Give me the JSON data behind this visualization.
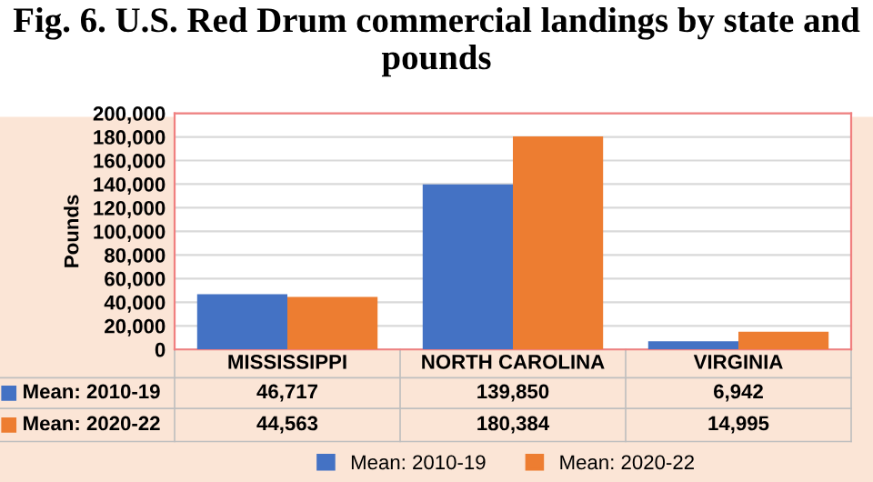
{
  "chart_data": {
    "type": "bar",
    "title": "Fig. 6. U.S. Red Drum commercial landings by state and pounds",
    "ylabel": "Pounds",
    "categories": [
      "MISSISSIPPI",
      "NORTH CAROLINA",
      "VIRGINIA"
    ],
    "series": [
      {
        "name": "Mean: 2010-19",
        "color": "#4472c4",
        "values": [
          46717,
          139850,
          6942
        ],
        "value_labels": [
          "46,717",
          "139,850",
          "6,942"
        ]
      },
      {
        "name": "Mean: 2020-22",
        "color": "#ed7d31",
        "values": [
          44563,
          180384,
          14995
        ],
        "value_labels": [
          "44,563",
          "180,384",
          "14,995"
        ]
      }
    ],
    "ylim": [
      0,
      200000
    ],
    "yticks": [
      {
        "value": 0,
        "label": "0"
      },
      {
        "value": 20000,
        "label": "20,000"
      },
      {
        "value": 40000,
        "label": "40,000"
      },
      {
        "value": 60000,
        "label": "60,000"
      },
      {
        "value": 80000,
        "label": "80,000"
      },
      {
        "value": 100000,
        "label": "100,000"
      },
      {
        "value": 120000,
        "label": "120,000"
      },
      {
        "value": 140000,
        "label": "140,000"
      },
      {
        "value": 160000,
        "label": "160,000"
      },
      {
        "value": 180000,
        "label": "180,000"
      },
      {
        "value": 200000,
        "label": "200,000"
      }
    ],
    "grid": "y",
    "legend": "bottom"
  }
}
